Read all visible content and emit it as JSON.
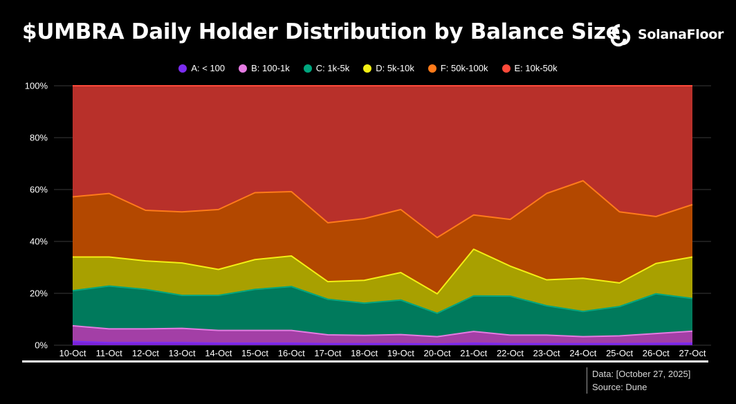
{
  "header": {
    "title": "$UMBRA Daily Holder Distribution by Balance Size",
    "brand": "SolanaFloor"
  },
  "footer": {
    "data_note": "Data: [October 27, 2025]",
    "source_note": "Source: Dune"
  },
  "colors": {
    "background": "#000000",
    "grid": "#3a3a3a",
    "axis_text": "#ffffff"
  },
  "chart_data": {
    "type": "area",
    "stacked": true,
    "title": "$UMBRA Daily Holder Distribution by Balance Size",
    "xlabel": "",
    "ylabel": "",
    "ylim": [
      0,
      100
    ],
    "y_ticks": [
      "0%",
      "20%",
      "40%",
      "60%",
      "80%",
      "100%"
    ],
    "grid": true,
    "legend_position": "top-center",
    "x": [
      "10-Oct",
      "11-Oct",
      "12-Oct",
      "13-Oct",
      "14-Oct",
      "15-Oct",
      "16-Oct",
      "17-Oct",
      "18-Oct",
      "19-Oct",
      "20-Oct",
      "21-Oct",
      "22-Oct",
      "23-Oct",
      "24-Oct",
      "25-Oct",
      "26-Oct",
      "27-Oct"
    ],
    "series": [
      {
        "name": "A: < 100",
        "line_color": "#7b2cf0",
        "fill_color": "#7a22d8",
        "values": [
          1.5,
          1.0,
          1.0,
          1.0,
          0.8,
          0.8,
          0.8,
          0.6,
          0.6,
          0.6,
          0.5,
          0.8,
          0.6,
          0.6,
          0.6,
          0.6,
          0.7,
          0.8
        ]
      },
      {
        "name": "B: 100-1k",
        "line_color": "#e57be2",
        "fill_color": "#a33fa6",
        "values": [
          6.0,
          5.3,
          5.3,
          5.5,
          4.9,
          4.9,
          4.9,
          3.4,
          3.2,
          3.5,
          2.8,
          4.5,
          3.3,
          3.3,
          2.7,
          3.0,
          3.8,
          4.6
        ]
      },
      {
        "name": "C: 1k-5k",
        "line_color": "#00a67e",
        "fill_color": "#007a5c",
        "values": [
          13.5,
          16.5,
          15.2,
          12.7,
          13.5,
          15.8,
          16.9,
          13.7,
          12.4,
          13.3,
          9.0,
          13.7,
          15.0,
          11.3,
          9.7,
          11.3,
          15.3,
          12.6
        ]
      },
      {
        "name": "D: 5k-10k",
        "line_color": "#f3ef14",
        "fill_color": "#a8a000",
        "values": [
          13.0,
          11.2,
          11.0,
          12.5,
          10.0,
          11.5,
          11.8,
          6.8,
          8.8,
          10.6,
          7.5,
          18.0,
          11.6,
          10.0,
          12.8,
          9.1,
          11.7,
          16.0
        ]
      },
      {
        "name": "F: 50k-100k",
        "line_color": "#ff7b1a",
        "fill_color": "#b34800",
        "values": [
          23.2,
          24.5,
          19.5,
          19.7,
          23.1,
          25.8,
          24.8,
          22.7,
          23.8,
          24.3,
          21.7,
          13.2,
          18.0,
          33.3,
          37.6,
          27.4,
          18.1,
          20.2
        ]
      },
      {
        "name": "E: 10k-50k",
        "line_color": "#ff4a3a",
        "fill_color": "#b8302a",
        "values": [
          42.8,
          41.5,
          48.0,
          48.6,
          47.7,
          41.2,
          40.8,
          52.8,
          51.2,
          47.7,
          58.5,
          49.8,
          51.5,
          41.5,
          36.6,
          48.6,
          50.4,
          45.8
        ]
      }
    ]
  }
}
